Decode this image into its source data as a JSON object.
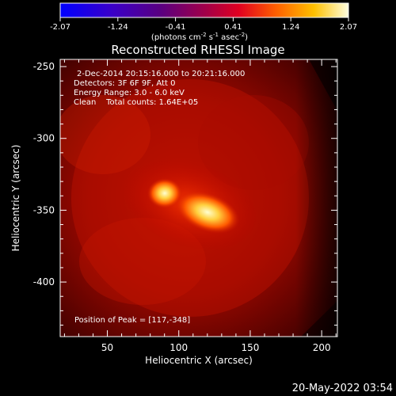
{
  "colorbar": {
    "ticks": [
      "-2.07",
      "-1.24",
      "-0.41",
      "0.41",
      "1.24",
      "2.07"
    ],
    "units_main": "(photons cm",
    "units_sup1": "-2",
    "units_mid": " s",
    "units_sup2": "-1",
    "units_end": " asec",
    "units_sup3": "-2",
    "units_close": ")"
  },
  "title": "Reconstructed RHESSI Image",
  "info": {
    "time_range": "2-Dec-2014 20:15:16.000 to 20:21:16.000",
    "detectors": "Detectors: 3F 6F 9F, Att 0",
    "energy": "Energy Range: 3.0 - 6.0 keV",
    "clean": "Clean    Total counts: 1.64E+05",
    "peak": "Position of Peak = [117,-348]"
  },
  "axes": {
    "xlabel": "Heliocentric X (arcsec)",
    "ylabel": "Heliocentric Y (arcsec)",
    "xticks": [
      "50",
      "100",
      "150",
      "200"
    ],
    "yticks": [
      "-250",
      "-300",
      "-350",
      "-400"
    ]
  },
  "footer": {
    "timestamp": "20-May-2022 03:54"
  },
  "colors": {
    "background": "#000000",
    "low": "#8b0000",
    "mid": "#ff4000",
    "high": "#ffffa0"
  }
}
